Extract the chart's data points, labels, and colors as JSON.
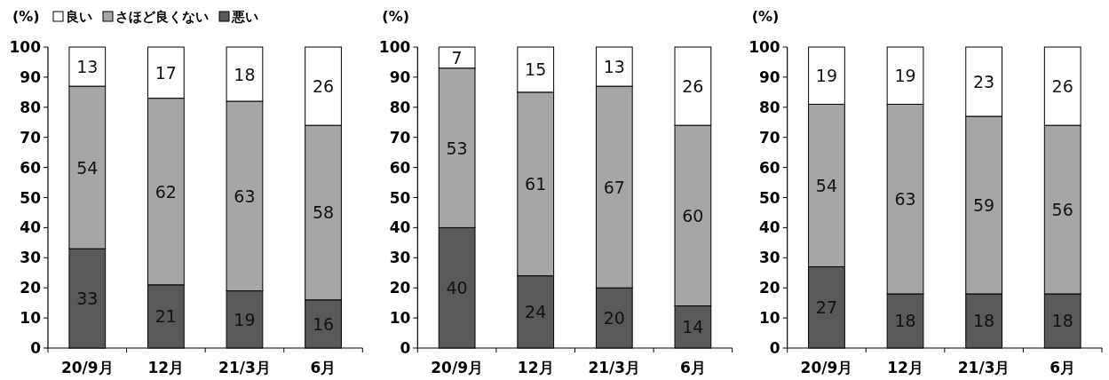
{
  "chart_data": [
    {
      "type": "bar",
      "stacked": true,
      "ylabel": "(%)",
      "categories": [
        "20/9月",
        "12月",
        "21/3月",
        "6月"
      ],
      "ylim": [
        0,
        100
      ],
      "yticks": [
        0,
        10,
        20,
        30,
        40,
        50,
        60,
        70,
        80,
        90,
        100
      ],
      "data_labels": true,
      "legend": "top",
      "series": [
        {
          "name": "悪い",
          "color": "#595959",
          "values": [
            33,
            21,
            19,
            16
          ]
        },
        {
          "name": "さほど良くない",
          "color": "#a6a6a6",
          "values": [
            54,
            62,
            63,
            58
          ]
        },
        {
          "name": "良い",
          "color": "#ffffff",
          "values": [
            13,
            17,
            18,
            26
          ]
        }
      ]
    },
    {
      "type": "bar",
      "stacked": true,
      "ylabel": "(%)",
      "categories": [
        "20/9月",
        "12月",
        "21/3月",
        "6月"
      ],
      "ylim": [
        0,
        100
      ],
      "yticks": [
        0,
        10,
        20,
        30,
        40,
        50,
        60,
        70,
        80,
        90,
        100
      ],
      "data_labels": true,
      "series": [
        {
          "color": "#595959",
          "values": [
            40,
            24,
            20,
            14
          ]
        },
        {
          "color": "#a6a6a6",
          "values": [
            53,
            61,
            67,
            60
          ]
        },
        {
          "color": "#ffffff",
          "values": [
            7,
            15,
            13,
            26
          ]
        }
      ]
    },
    {
      "type": "bar",
      "stacked": true,
      "ylabel": "(%)",
      "categories": [
        "20/9月",
        "12月",
        "21/3月",
        "6月"
      ],
      "ylim": [
        0,
        100
      ],
      "yticks": [
        0,
        10,
        20,
        30,
        40,
        50,
        60,
        70,
        80,
        90,
        100
      ],
      "data_labels": true,
      "series": [
        {
          "color": "#595959",
          "values": [
            27,
            18,
            18,
            18
          ]
        },
        {
          "color": "#a6a6a6",
          "values": [
            54,
            63,
            59,
            56
          ]
        },
        {
          "color": "#ffffff",
          "values": [
            19,
            19,
            23,
            26
          ]
        }
      ]
    }
  ]
}
